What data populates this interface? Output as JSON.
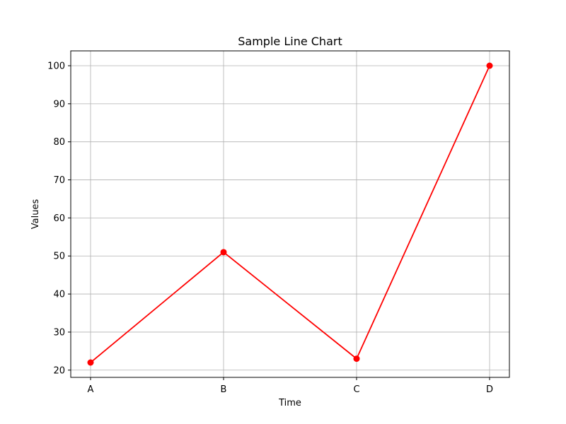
{
  "chart_data": {
    "type": "line",
    "title": "Sample Line Chart",
    "xlabel": "Time",
    "ylabel": "Values",
    "categories": [
      "A",
      "B",
      "C",
      "D"
    ],
    "series": [
      {
        "values": [
          22,
          51,
          23,
          100
        ],
        "color": "#ff0000",
        "marker": "circle"
      }
    ],
    "ylim": [
      18.1,
      103.9
    ],
    "yticks": [
      20,
      30,
      40,
      50,
      60,
      70,
      80,
      90,
      100
    ],
    "grid": true
  }
}
